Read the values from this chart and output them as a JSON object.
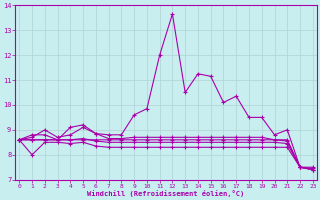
{
  "xlabel": "Windchill (Refroidissement éolien,°C)",
  "background_color": "#c8eef0",
  "line_color": "#aa00aa",
  "grid_color": "#b0d4d6",
  "x_values": [
    0,
    1,
    2,
    3,
    4,
    5,
    6,
    7,
    8,
    9,
    10,
    11,
    12,
    13,
    14,
    15,
    16,
    17,
    18,
    19,
    20,
    21,
    22,
    23
  ],
  "ylim": [
    7,
    14
  ],
  "xlim": [
    0,
    23
  ],
  "yticks": [
    7,
    8,
    9,
    10,
    11,
    12,
    13,
    14
  ],
  "xticks": [
    0,
    1,
    2,
    3,
    4,
    5,
    6,
    7,
    8,
    9,
    10,
    11,
    12,
    13,
    14,
    15,
    16,
    17,
    18,
    19,
    20,
    21,
    22,
    23
  ],
  "series": [
    [
      8.6,
      8.8,
      8.8,
      8.6,
      9.1,
      9.2,
      8.85,
      8.8,
      8.8,
      9.6,
      9.85,
      12.0,
      13.65,
      10.5,
      11.25,
      11.15,
      10.1,
      10.35,
      9.5,
      9.5,
      8.8,
      9.0,
      7.5,
      7.5
    ],
    [
      8.6,
      8.7,
      9.0,
      8.7,
      8.8,
      9.1,
      8.85,
      8.65,
      8.65,
      8.7,
      8.7,
      8.7,
      8.7,
      8.7,
      8.7,
      8.7,
      8.7,
      8.7,
      8.7,
      8.7,
      8.6,
      8.55,
      7.5,
      7.45
    ],
    [
      8.6,
      8.6,
      8.6,
      8.6,
      8.6,
      8.65,
      8.55,
      8.5,
      8.5,
      8.5,
      8.5,
      8.5,
      8.5,
      8.5,
      8.5,
      8.5,
      8.5,
      8.5,
      8.5,
      8.5,
      8.5,
      8.45,
      7.5,
      7.4
    ],
    [
      8.6,
      8.0,
      8.5,
      8.5,
      8.45,
      8.5,
      8.35,
      8.3,
      8.3,
      8.3,
      8.3,
      8.3,
      8.3,
      8.3,
      8.3,
      8.3,
      8.3,
      8.3,
      8.3,
      8.3,
      8.3,
      8.3,
      7.5,
      7.4
    ],
    [
      8.6,
      8.6,
      8.6,
      8.6,
      8.6,
      8.6,
      8.6,
      8.6,
      8.6,
      8.6,
      8.6,
      8.6,
      8.6,
      8.6,
      8.6,
      8.6,
      8.6,
      8.6,
      8.6,
      8.6,
      8.6,
      8.6,
      7.5,
      7.4
    ]
  ]
}
